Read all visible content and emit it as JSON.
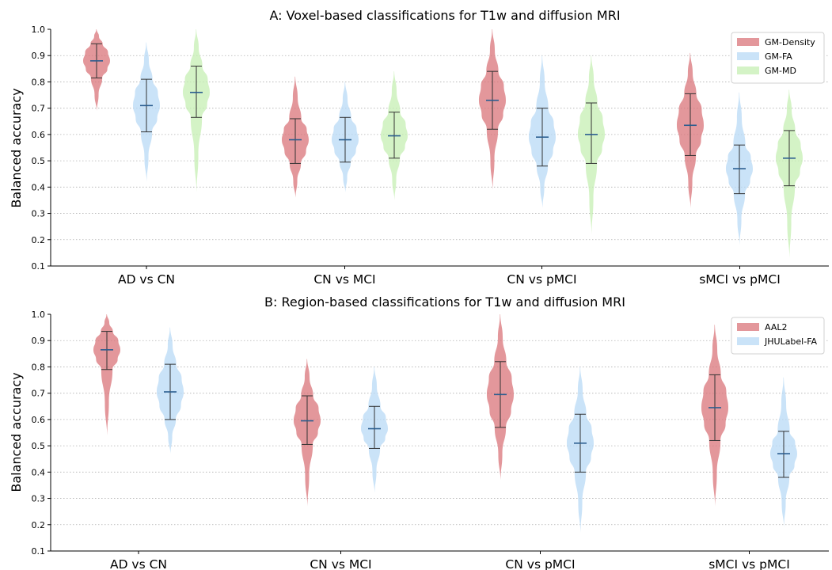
{
  "panels": [
    {
      "chart_data": {
        "type": "violin",
        "title": "A: Voxel-based classifications for T1w and diffusion MRI",
        "ylabel": "Balanced accuracy",
        "xlabel": "",
        "ylim": [
          0.1,
          1.0
        ],
        "yticks": [
          "0.1",
          "0.2",
          "0.3",
          "0.4",
          "0.5",
          "0.6",
          "0.7",
          "0.8",
          "0.9",
          "1.0"
        ],
        "grid": true,
        "legend_position": "top-right",
        "categories": [
          "AD vs CN",
          "CN vs MCI",
          "CN vs pMCI",
          "sMCI vs pMCI"
        ],
        "series": [
          {
            "name": "GM-Density",
            "color": "#d9747a",
            "mean": [
              0.88,
              0.58,
              0.73,
              0.635
            ],
            "whisker_low": [
              0.815,
              0.49,
              0.62,
              0.52
            ],
            "whisker_high": [
              0.945,
              0.66,
              0.84,
              0.755
            ],
            "range_low": [
              0.69,
              0.36,
              0.39,
              0.32
            ],
            "range_high": [
              1.0,
              0.82,
              1.0,
              0.91
            ]
          },
          {
            "name": "GM-FA",
            "color": "#b8daf6",
            "mean": [
              0.71,
              0.58,
              0.59,
              0.47
            ],
            "whisker_low": [
              0.61,
              0.495,
              0.48,
              0.375
            ],
            "whisker_high": [
              0.81,
              0.665,
              0.7,
              0.56
            ],
            "range_low": [
              0.42,
              0.38,
              0.32,
              0.18
            ],
            "range_high": [
              0.95,
              0.8,
              0.9,
              0.76
            ]
          },
          {
            "name": "GM-MD",
            "color": "#c6efb3",
            "mean": [
              0.76,
              0.595,
              0.6,
              0.51
            ],
            "whisker_low": [
              0.665,
              0.51,
              0.49,
              0.405
            ],
            "whisker_high": [
              0.86,
              0.685,
              0.72,
              0.615
            ],
            "range_low": [
              0.38,
              0.35,
              0.22,
              0.13
            ],
            "range_high": [
              1.0,
              0.84,
              0.9,
              0.77
            ]
          }
        ]
      }
    },
    {
      "chart_data": {
        "type": "violin",
        "title": "B: Region-based classifications for T1w and diffusion MRI",
        "ylabel": "Balanced accuracy",
        "xlabel": "",
        "ylim": [
          0.1,
          1.0
        ],
        "yticks": [
          "0.1",
          "0.2",
          "0.3",
          "0.4",
          "0.5",
          "0.6",
          "0.7",
          "0.8",
          "0.9",
          "1.0"
        ],
        "grid": true,
        "legend_position": "top-right",
        "categories": [
          "AD vs CN",
          "CN vs MCI",
          "CN vs pMCI",
          "sMCI vs pMCI"
        ],
        "series": [
          {
            "name": "AAL2",
            "color": "#d9747a",
            "mean": [
              0.865,
              0.595,
              0.695,
              0.645
            ],
            "whisker_low": [
              0.79,
              0.505,
              0.57,
              0.52
            ],
            "whisker_high": [
              0.935,
              0.69,
              0.82,
              0.77
            ],
            "range_low": [
              0.54,
              0.27,
              0.37,
              0.27
            ],
            "range_high": [
              1.0,
              0.83,
              1.0,
              0.96
            ]
          },
          {
            "name": "JHULabel-FA",
            "color": "#b8daf6",
            "mean": [
              0.705,
              0.565,
              0.51,
              0.47
            ],
            "whisker_low": [
              0.6,
              0.49,
              0.4,
              0.38
            ],
            "whisker_high": [
              0.81,
              0.65,
              0.62,
              0.555
            ],
            "range_low": [
              0.47,
              0.32,
              0.17,
              0.19
            ],
            "range_high": [
              0.95,
              0.8,
              0.8,
              0.76
            ]
          }
        ]
      }
    }
  ]
}
